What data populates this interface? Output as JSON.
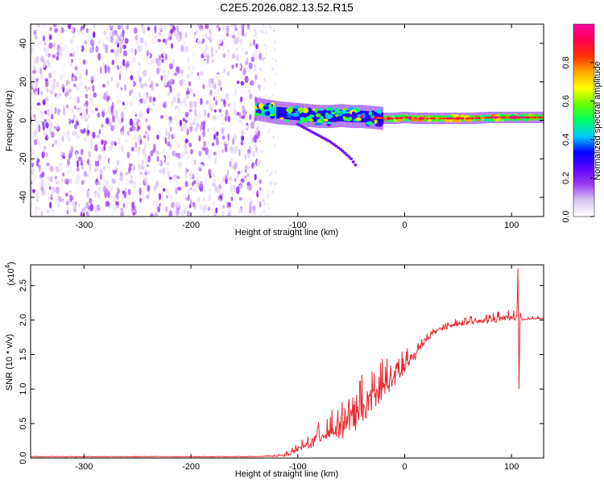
{
  "figure": {
    "title": "C2E5.2026.082.13.52.R15"
  },
  "chart_data": [
    {
      "type": "heatmap",
      "xlabel": "Height of straight line (km)",
      "ylabel": "Frequency (Hz)",
      "xlim": [
        -350,
        130
      ],
      "ylim": [
        -50,
        50
      ],
      "x_ticks": [
        "-300",
        "-200",
        "-100",
        "0",
        "100"
      ],
      "y_ticks": [
        "40",
        "20",
        "0",
        "-20",
        "-40"
      ],
      "grid": false,
      "noise_region_x": [
        -350,
        -135
      ],
      "signal_trace": {
        "x": [
          -140,
          -130,
          -120,
          -110,
          -100,
          -90,
          -80,
          -70,
          -60,
          -50,
          -40,
          -30,
          -20,
          -10,
          0,
          10,
          20,
          40,
          60,
          80,
          100,
          130
        ],
        "freq": [
          6,
          5,
          4,
          3.5,
          3,
          2.5,
          2,
          2,
          2.5,
          2,
          2,
          1.5,
          1,
          1,
          1.5,
          1,
          1,
          1,
          1,
          1.5,
          1.5,
          1.5
        ]
      },
      "secondary_trace": {
        "x": [
          -100,
          -90,
          -80,
          -70,
          -60,
          -50,
          -45
        ],
        "freq": [
          -2,
          -5,
          -8,
          -11,
          -15,
          -20,
          -24
        ]
      },
      "colorbar": {
        "label": "Normalized spectral amplitude",
        "range": [
          0,
          1
        ],
        "ticks": [
          "0.0",
          "0.2",
          "0.4",
          "0.6",
          "0.8"
        ],
        "colors": [
          "#ffffff",
          "#dcc8f5",
          "#9a3cf0",
          "#5a00ff",
          "#0000ff",
          "#00ccff",
          "#00ff66",
          "#66ff00",
          "#ffff00",
          "#ffaa00",
          "#ff3300",
          "#ff0050",
          "#ff00a0"
        ]
      }
    },
    {
      "type": "line",
      "xlabel": "Height of straight line (km)",
      "ylabel": "SNR (10 * v/v)",
      "multiplier": "(x10",
      "multiplier_exp": "4",
      "multiplier_close": ")",
      "xlim": [
        -350,
        130
      ],
      "ylim": [
        0,
        2.8
      ],
      "x_ticks": [
        "-300",
        "-200",
        "-100",
        "0",
        "100"
      ],
      "y_ticks": [
        "0.0",
        "0.5",
        "1.0",
        "1.5",
        "2.0",
        "2.5"
      ],
      "grid": false,
      "color": "#e8282e",
      "series": [
        {
          "x": [
            -350,
            -140,
            -120,
            -110,
            -100,
            -90,
            -80,
            -70,
            -60,
            -50,
            -40,
            -30,
            -20,
            -10,
            0,
            10,
            20,
            30,
            40,
            50,
            60,
            70,
            80,
            90,
            100,
            105,
            106,
            107,
            108,
            110,
            120,
            130
          ],
          "y": [
            0.02,
            0.02,
            0.03,
            0.05,
            0.12,
            0.2,
            0.3,
            0.38,
            0.45,
            0.55,
            0.65,
            0.85,
            1.0,
            1.15,
            1.3,
            1.5,
            1.72,
            1.85,
            1.9,
            1.94,
            1.96,
            1.98,
            2.0,
            2.02,
            2.03,
            2.05,
            2.75,
            1.0,
            2.1,
            2.0,
            2.02,
            2.03
          ],
          "noise_amplitude": [
            0,
            0,
            0.02,
            0.05,
            0.12,
            0.2,
            0.28,
            0.35,
            0.4,
            0.45,
            0.5,
            0.5,
            0.45,
            0.4,
            0.35,
            0.2,
            0.1,
            0.08,
            0.08,
            0.08,
            0.08,
            0.1,
            0.12,
            0.12,
            0.12,
            0.1,
            0,
            0,
            0.05,
            0.03,
            0.03,
            0.03
          ]
        }
      ]
    }
  ]
}
